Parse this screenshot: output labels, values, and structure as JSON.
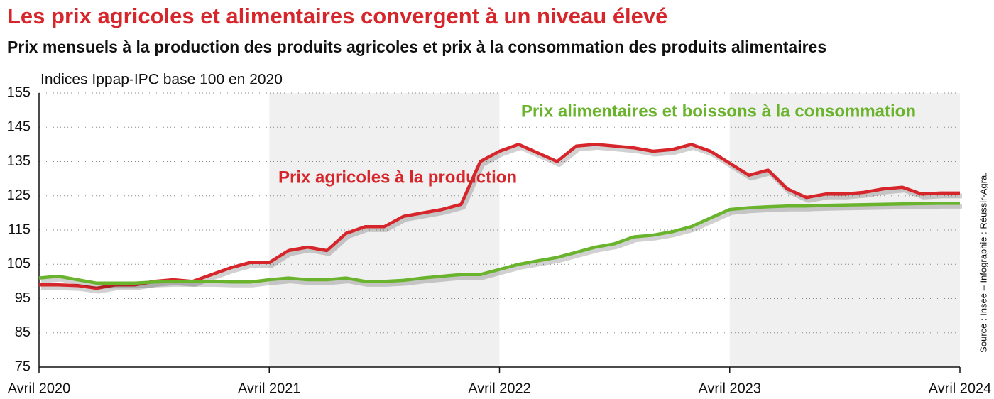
{
  "chart_data": {
    "type": "line",
    "title": "Les prix agricoles et alimentaires convergent à un niveau élevé",
    "subtitle": "Prix mensuels à la production des produits agricoles et prix à la consommation des produits alimentaires",
    "y_axis_label": "Indices Ippap-IPC base 100 en 2020",
    "source": "Source : Insee – Infographie : Réussir-Agra.",
    "categories": [
      "Avril 2020",
      null,
      null,
      null,
      null,
      null,
      null,
      null,
      null,
      null,
      null,
      null,
      "Avril 2021",
      null,
      null,
      null,
      null,
      null,
      null,
      null,
      null,
      null,
      null,
      null,
      "Avril 2022",
      null,
      null,
      null,
      null,
      null,
      null,
      null,
      null,
      null,
      null,
      null,
      "Avril 2023",
      null,
      null,
      null,
      null,
      null,
      null,
      null,
      null,
      null,
      null,
      null,
      "Avril 2024"
    ],
    "series": [
      {
        "name": "Prix agricoles à la production",
        "color": "#d7262b",
        "values": [
          99,
          99,
          98.8,
          98,
          99,
          99,
          100,
          100.5,
          100,
          102,
          104,
          105.5,
          105.5,
          109,
          110,
          109,
          114,
          116,
          116,
          119,
          120,
          121,
          122.5,
          135,
          138,
          140,
          137.5,
          135,
          139.5,
          140,
          139.5,
          139,
          138,
          138.5,
          140,
          138,
          134.5,
          131,
          132.5,
          127,
          124.5,
          125.5,
          125.5,
          126,
          127,
          127.5,
          125.5,
          125.8,
          125.8
        ]
      },
      {
        "name": "Prix alimentaires et boissons à la consommation",
        "color": "#6ab42d",
        "values": [
          101,
          101.5,
          100.5,
          99.5,
          99.5,
          99.5,
          99.8,
          100,
          100,
          100,
          99.8,
          99.8,
          100.5,
          101,
          100.5,
          100.5,
          101,
          100,
          100,
          100.3,
          101,
          101.5,
          102,
          102,
          103.5,
          105,
          106,
          107,
          108.5,
          110,
          111,
          113,
          113.5,
          114.5,
          116,
          118.5,
          121,
          121.5,
          121.8,
          122,
          122,
          122.2,
          122.3,
          122.4,
          122.5,
          122.6,
          122.7,
          122.8,
          122.8
        ]
      }
    ],
    "ylim": [
      75,
      155
    ],
    "yticks": [
      75,
      85,
      95,
      105,
      115,
      125,
      135,
      145,
      155
    ],
    "grid": true
  }
}
